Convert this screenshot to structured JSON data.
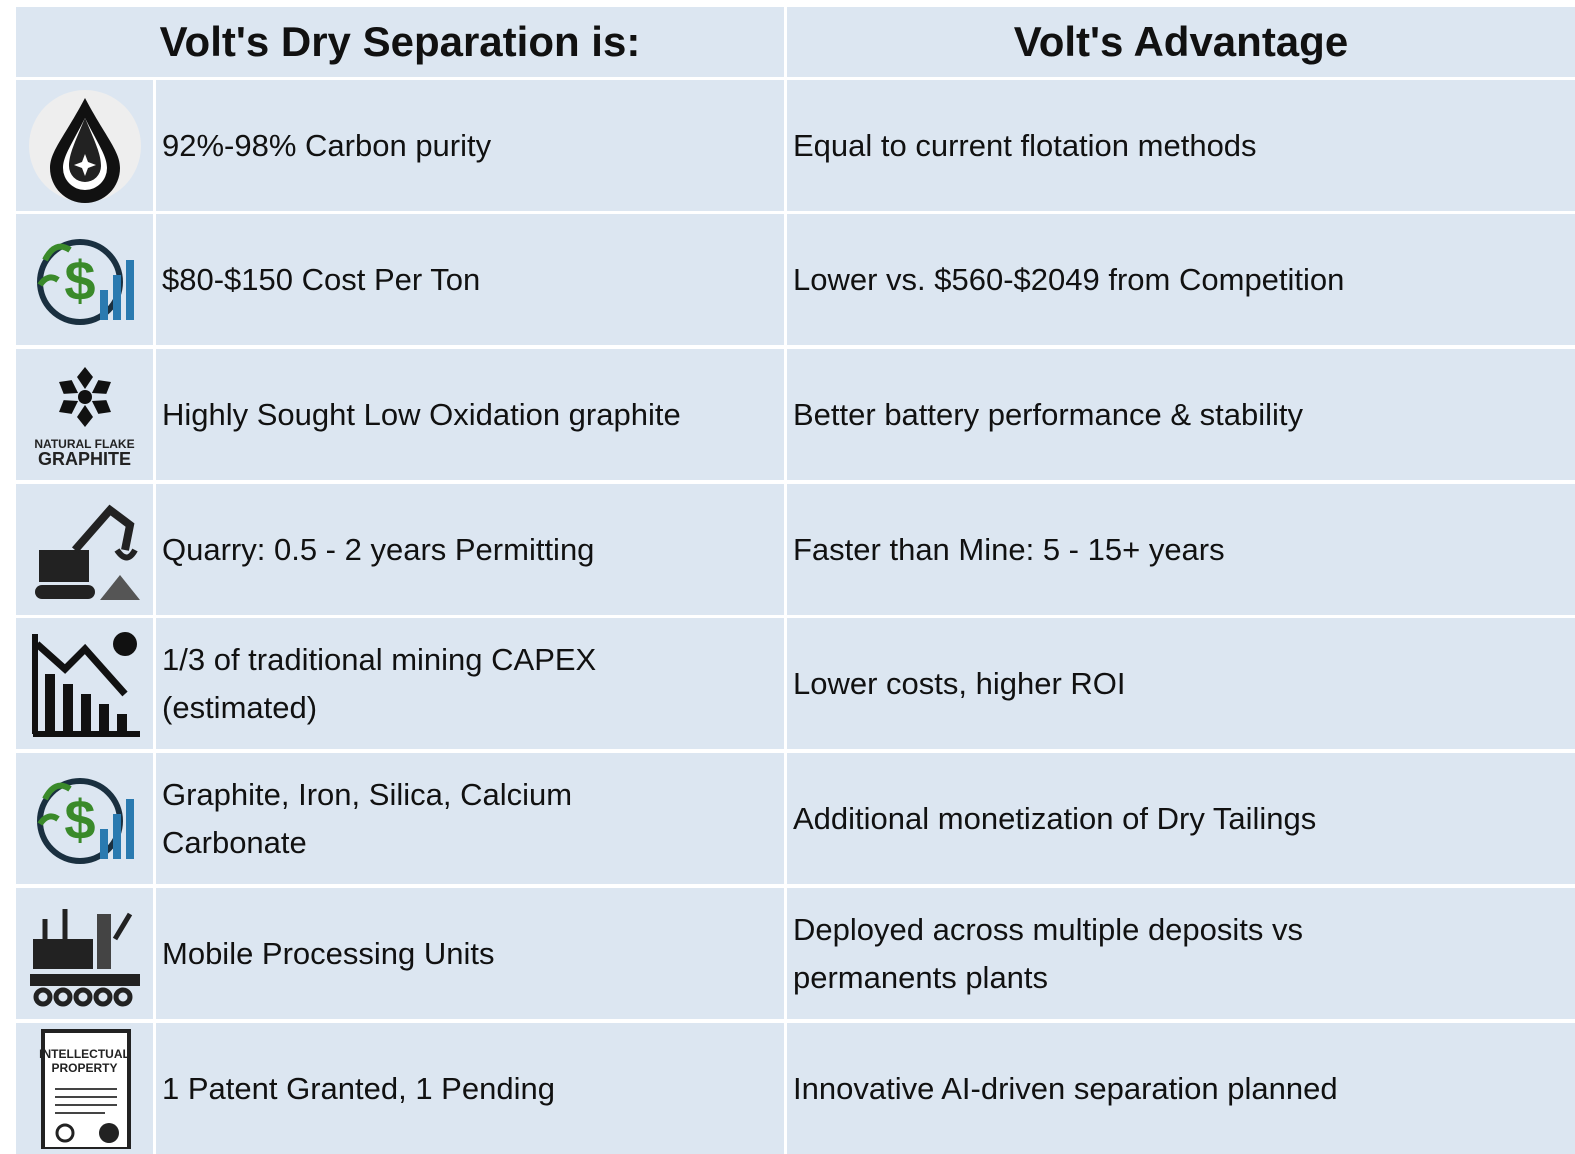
{
  "table": {
    "header": [
      "Volt's Dry Separation is:",
      "Volt's Advantage"
    ],
    "rows": [
      {
        "feature": [
          "92%-98% Carbon purity"
        ],
        "advantage": [
          "Equal to current flotation methods"
        ]
      },
      {
        "feature": [
          "$80-$150 Cost Per Ton"
        ],
        "advantage": [
          "Lower vs. $560-$2049 from Competition"
        ]
      },
      {
        "feature": [
          "Highly Sought Low Oxidation graphite"
        ],
        "advantage": [
          "Better battery performance & stability"
        ],
        "icon_text": [
          "NATURAL FLAKE",
          "GRAPHITE"
        ]
      },
      {
        "feature": [
          "Quarry: 0.5 - 2 years Permitting"
        ],
        "advantage": [
          "Faster than Mine: 5 - 15+ years"
        ]
      },
      {
        "feature": [
          "1/3 of traditional mining CAPEX",
          "(estimated)"
        ],
        "advantage": [
          "Lower costs, higher ROI"
        ]
      },
      {
        "feature": [
          "Graphite, Iron, Silica, Calcium",
          "Carbonate"
        ],
        "advantage": [
          "Additional monetization of Dry Tailings"
        ]
      },
      {
        "feature": [
          "Mobile Processing Units"
        ],
        "advantage": [
          "Deployed across multiple deposits vs",
          "permanents plants"
        ]
      },
      {
        "feature": [
          "1 Patent Granted, 1 Pending"
        ],
        "advantage": [
          "Innovative AI-driven separation planned"
        ],
        "icon_text": [
          "INTELLECTUAL",
          "PROPERTY"
        ]
      }
    ]
  }
}
